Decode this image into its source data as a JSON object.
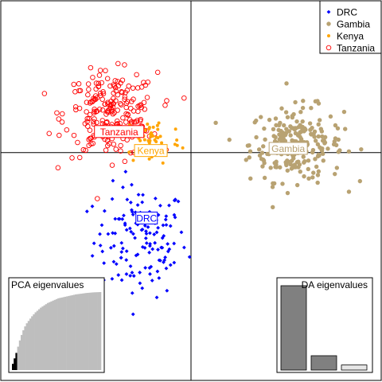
{
  "chart_data": {
    "type": "scatter",
    "title": "",
    "xlabel": "",
    "ylabel": "",
    "grid": false,
    "xlim": [
      -4.5,
      4.5
    ],
    "ylim": [
      -5.4,
      3.6
    ],
    "legend": {
      "placement": "top-right",
      "entries": [
        {
          "label": "DRC",
          "color": "#0000ff",
          "marker": "diamond"
        },
        {
          "label": "Gambia",
          "color": "#b8a272",
          "marker": "filled-circle"
        },
        {
          "label": "Kenya",
          "color": "#ffa500",
          "marker": "small-filled-circle"
        },
        {
          "label": "Tanzania",
          "color": "#ff0000",
          "marker": "open-circle"
        }
      ]
    },
    "series": [
      {
        "name": "DRC",
        "color": "#0000ff",
        "label_at": [
          -1.05,
          -1.55
        ],
        "center": [
          -1.2,
          -2.1
        ],
        "spread": [
          1.0,
          1.2
        ],
        "n": 140
      },
      {
        "name": "Gambia",
        "color": "#b8a272",
        "label_at": [
          2.3,
          0.1
        ],
        "center": [
          2.5,
          0.2
        ],
        "spread": [
          1.0,
          0.8
        ],
        "n": 240
      },
      {
        "name": "Kenya",
        "color": "#ffa500",
        "label_at": [
          -0.95,
          0.05
        ],
        "center": [
          -0.9,
          0.3
        ],
        "spread": [
          0.6,
          0.55
        ],
        "n": 50
      },
      {
        "name": "Tanzania",
        "color": "#ff0000",
        "label_at": [
          -1.7,
          0.5
        ],
        "center": [
          -1.9,
          0.9
        ],
        "spread": [
          1.0,
          0.9
        ],
        "n": 220
      }
    ],
    "insets": {
      "pca": {
        "title": "PCA eigenvalues",
        "retained": 3,
        "cumulative": [
          0.08,
          0.15,
          0.22,
          0.3,
          0.38,
          0.45,
          0.51,
          0.56,
          0.6,
          0.63,
          0.66,
          0.69,
          0.715,
          0.74,
          0.76,
          0.78,
          0.8,
          0.815,
          0.83,
          0.845,
          0.86,
          0.87,
          0.88,
          0.89,
          0.9,
          0.91,
          0.92,
          0.925,
          0.93,
          0.935,
          0.94,
          0.945,
          0.95,
          0.955,
          0.96,
          0.965,
          0.97,
          0.973,
          0.976,
          0.979,
          0.982,
          0.985,
          0.988,
          0.99,
          0.992,
          0.994,
          0.996,
          0.997,
          0.998,
          0.999,
          1.0
        ]
      },
      "da": {
        "title": "DA eigenvalues",
        "values": [
          1.0,
          0.17,
          0.06
        ],
        "colors": [
          "#808080",
          "#808080",
          "#e6e6e6"
        ]
      }
    }
  }
}
